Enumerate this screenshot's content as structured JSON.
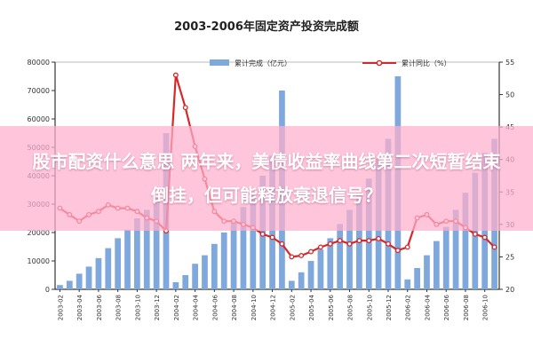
{
  "overlay": {
    "headline": "股市配资什么意思 两年来，美债收益率曲线第二次短暂结束倒挂，但可能释放衰退信号？"
  },
  "chart_data": {
    "type": "bar+line",
    "title": "2003-2006年固定资产投资完成额",
    "legend": {
      "placement": "top",
      "bar_label": "累计完成（亿元）",
      "line_label": "累计同比（%）"
    },
    "y_left": {
      "ylim": [
        0,
        80000
      ],
      "ticks": [
        0,
        10000,
        20000,
        30000,
        40000,
        50000,
        60000,
        70000,
        80000
      ]
    },
    "y_right": {
      "ylim": [
        20,
        55
      ],
      "ticks": [
        20,
        25,
        30,
        35,
        40,
        45,
        50,
        55
      ]
    },
    "x_tick_labels": [
      "2003-02",
      "2003-04",
      "2003-06",
      "2003-08",
      "2003-10",
      "2003-12",
      "2004-02",
      "2004-04",
      "2004-06",
      "2004-08",
      "2004-10",
      "2004-12",
      "2005-02",
      "2005-04",
      "2005-06",
      "2005-08",
      "2005-10",
      "2005-12",
      "2006-02",
      "2006-04",
      "2006-06",
      "2006-08",
      "2006-10"
    ],
    "series": [
      {
        "name": "累计完成（亿元）",
        "type": "bar",
        "values": [
          1500,
          3000,
          5500,
          8000,
          11000,
          14500,
          18000,
          21000,
          25000,
          28000,
          33000,
          55000,
          2500,
          5000,
          9000,
          12000,
          16000,
          20000,
          24000,
          29000,
          34000,
          40000,
          47000,
          70000,
          3000,
          6000,
          10000,
          14000,
          18000,
          23000,
          28000,
          34000,
          39000,
          46000,
          53000,
          75000,
          3500,
          7500,
          12000,
          17000,
          22000,
          28000,
          34000,
          41000,
          48000,
          53000
        ]
      },
      {
        "name": "累计同比（%）",
        "type": "line",
        "values": [
          32.5,
          31.5,
          30.5,
          31.5,
          32.0,
          33.0,
          32.5,
          32.5,
          32.0,
          31.0,
          30.5,
          29.0,
          53.0,
          48.0,
          42.0,
          37.0,
          32.0,
          30.5,
          30.5,
          30.0,
          29.5,
          28.5,
          28.0,
          27.0,
          25.0,
          25.2,
          25.8,
          26.5,
          27.0,
          27.5,
          27.0,
          27.5,
          27.5,
          27.8,
          27.0,
          26.0,
          26.5,
          31.0,
          31.5,
          30.0,
          30.5,
          30.5,
          29.5,
          28.5,
          28.0,
          26.5
        ]
      }
    ],
    "colors": {
      "bar": "#7fa9dc",
      "line": "#d62828",
      "axis": "#333333",
      "title": "#222222"
    }
  }
}
